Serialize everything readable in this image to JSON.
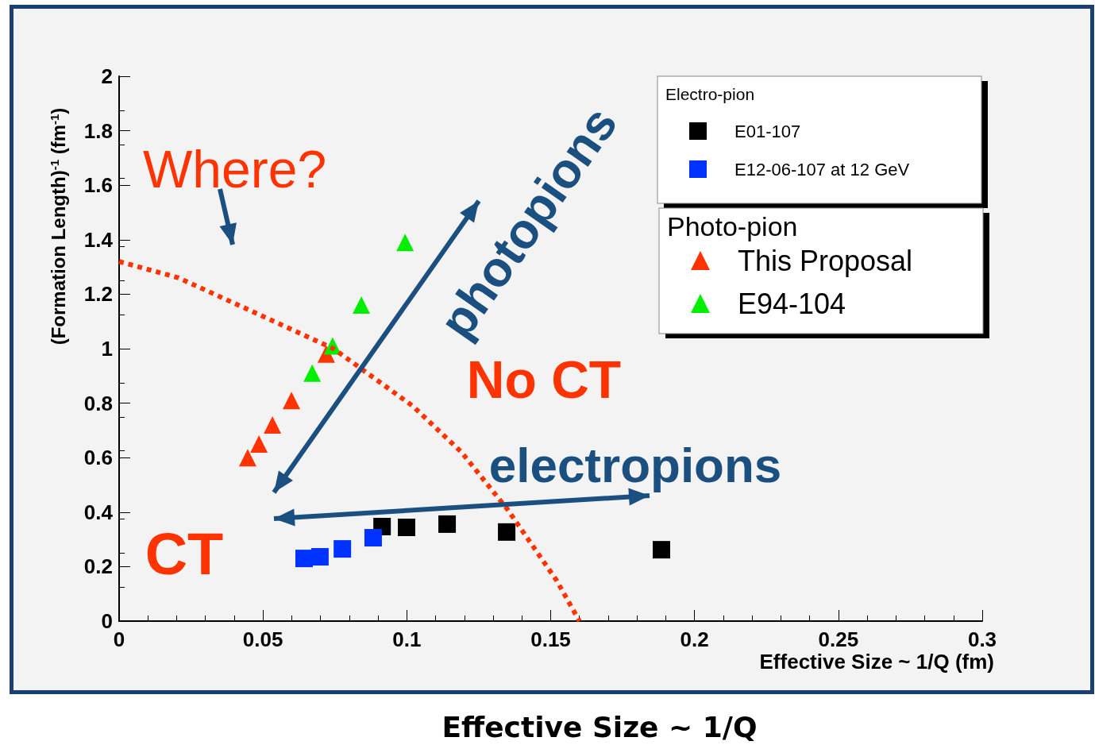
{
  "chart_data": {
    "type": "scatter",
    "xlabel": "Effective Size ~ 1/Q (fm)",
    "ylabel": "(Formation Length)$^{-1}$ (fm$^{-1}$)",
    "xlim": [
      0,
      0.3
    ],
    "xticks": [
      0,
      0.05,
      0.1,
      0.15,
      0.2,
      0.25,
      0.3
    ],
    "ylim": [
      0,
      2
    ],
    "yticks": [
      0,
      0.2,
      0.4,
      0.6,
      0.8,
      1,
      1.2,
      1.4,
      1.6,
      1.8,
      2
    ],
    "grid": false,
    "legend": "top right",
    "annotations": [
      "Where?",
      "photopions",
      "No CT",
      "electropions",
      "CT",
      "Effective Size ~ 1/Q",
      "Electro-pion",
      "Photo-pion"
    ],
    "series": [
      {
        "name": "E01-107",
        "color": "#000000",
        "marker": "square",
        "x": [
          0.0914,
          0.0999,
          0.114,
          0.1347,
          0.1885
        ],
        "values": [
          0.347,
          0.344,
          0.356,
          0.327,
          0.262
        ]
      },
      {
        "name": "E12-06-107 at 12 GeV",
        "color": "#0033ff",
        "marker": "square",
        "x": [
          0.0643,
          0.0698,
          0.0776,
          0.0883
        ],
        "values": [
          0.23,
          0.236,
          0.265,
          0.306
        ]
      },
      {
        "name": "This Proposal",
        "color": "#ff3300",
        "marker": "triangle",
        "x": [
          0.0447,
          0.0486,
          0.0533,
          0.0599,
          0.072
        ],
        "values": [
          0.6,
          0.65,
          0.72,
          0.81,
          0.98
        ]
      },
      {
        "name": "E94-104",
        "color": "#00ee00",
        "marker": "triangle",
        "x": [
          0.0671,
          0.0742,
          0.0842,
          0.0994
        ],
        "values": [
          0.91,
          1.01,
          1.16,
          1.39
        ]
      },
      {
        "type": "line",
        "color": "#ff3300",
        "line_style": "dotted",
        "marker": "none",
        "x": [
          0,
          0.0207,
          0.0414,
          0.0745,
          0.102,
          0.119,
          0.135,
          0.152,
          0.16
        ],
        "values": [
          1.32,
          1.26,
          1.16,
          1.0,
          0.79,
          0.62,
          0.41,
          0.15,
          0
        ]
      }
    ]
  }
}
